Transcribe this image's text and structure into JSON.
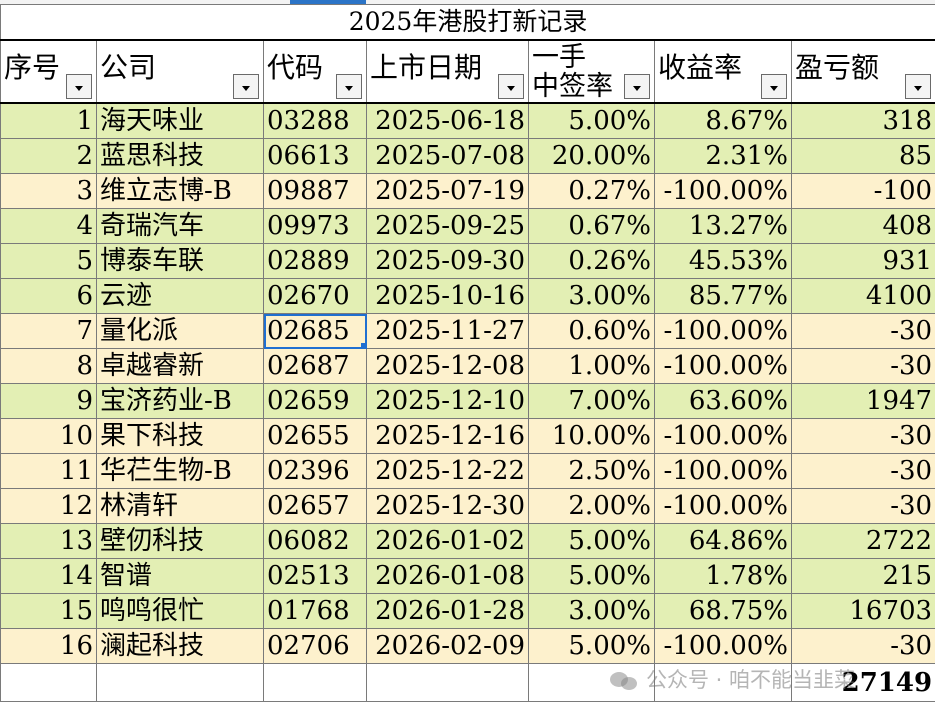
{
  "sheet_title": "2025年港股打新记录",
  "headers": {
    "index": "序号",
    "company": "公司",
    "code": "代码",
    "date": "上市日期",
    "rate_line1": "一手",
    "rate_line2": "中签率",
    "yield": "收益率",
    "pnl": "盈亏额"
  },
  "rows": [
    {
      "idx": "1",
      "name": "海天味业",
      "code": "03288",
      "date": "2025-06-18",
      "rate": "5.00%",
      "yield": "8.67%",
      "pnl": "318",
      "band": "green"
    },
    {
      "idx": "2",
      "name": "蓝思科技",
      "code": "06613",
      "date": "2025-07-08",
      "rate": "20.00%",
      "yield": "2.31%",
      "pnl": "85",
      "band": "green"
    },
    {
      "idx": "3",
      "name": "维立志博-B",
      "code": "09887",
      "date": "2025-07-19",
      "rate": "0.27%",
      "yield": "-100.00%",
      "pnl": "-100",
      "band": "cream"
    },
    {
      "idx": "4",
      "name": "奇瑞汽车",
      "code": "09973",
      "date": "2025-09-25",
      "rate": "0.67%",
      "yield": "13.27%",
      "pnl": "408",
      "band": "green"
    },
    {
      "idx": "5",
      "name": "博泰车联",
      "code": "02889",
      "date": "2025-09-30",
      "rate": "0.26%",
      "yield": "45.53%",
      "pnl": "931",
      "band": "green"
    },
    {
      "idx": "6",
      "name": "云迹",
      "code": "02670",
      "date": "2025-10-16",
      "rate": "3.00%",
      "yield": "85.77%",
      "pnl": "4100",
      "band": "green"
    },
    {
      "idx": "7",
      "name": "量化派",
      "code": "02685",
      "date": "2025-11-27",
      "rate": "0.60%",
      "yield": "-100.00%",
      "pnl": "-30",
      "band": "cream"
    },
    {
      "idx": "8",
      "name": "卓越睿新",
      "code": "02687",
      "date": "2025-12-08",
      "rate": "1.00%",
      "yield": "-100.00%",
      "pnl": "-30",
      "band": "cream"
    },
    {
      "idx": "9",
      "name": "宝济药业-B",
      "code": "02659",
      "date": "2025-12-10",
      "rate": "7.00%",
      "yield": "63.60%",
      "pnl": "1947",
      "band": "green"
    },
    {
      "idx": "10",
      "name": "果下科技",
      "code": "02655",
      "date": "2025-12-16",
      "rate": "10.00%",
      "yield": "-100.00%",
      "pnl": "-30",
      "band": "cream"
    },
    {
      "idx": "11",
      "name": "华芢生物-B",
      "code": "02396",
      "date": "2025-12-22",
      "rate": "2.50%",
      "yield": "-100.00%",
      "pnl": "-30",
      "band": "cream"
    },
    {
      "idx": "12",
      "name": "林清轩",
      "code": "02657",
      "date": "2025-12-30",
      "rate": "2.00%",
      "yield": "-100.00%",
      "pnl": "-30",
      "band": "cream"
    },
    {
      "idx": "13",
      "name": "壁仞科技",
      "code": "06082",
      "date": "2026-01-02",
      "rate": "5.00%",
      "yield": "64.86%",
      "pnl": "2722",
      "band": "green"
    },
    {
      "idx": "14",
      "name": "智谱",
      "code": "02513",
      "date": "2026-01-08",
      "rate": "5.00%",
      "yield": "1.78%",
      "pnl": "215",
      "band": "green"
    },
    {
      "idx": "15",
      "name": "鸣鸣很忙",
      "code": "01768",
      "date": "2026-01-28",
      "rate": "3.00%",
      "yield": "68.75%",
      "pnl": "16703",
      "band": "green"
    },
    {
      "idx": "16",
      "name": "澜起科技",
      "code": "02706",
      "date": "2026-02-09",
      "rate": "5.00%",
      "yield": "-100.00%",
      "pnl": "-30",
      "band": "cream"
    }
  ],
  "total": "27149",
  "watermark": "公众号 · 咱不能当韭菜",
  "colors": {
    "gain_row": "#e3efb4",
    "loss_row": "#fdf1cd",
    "selection": "#1f6fd1"
  }
}
